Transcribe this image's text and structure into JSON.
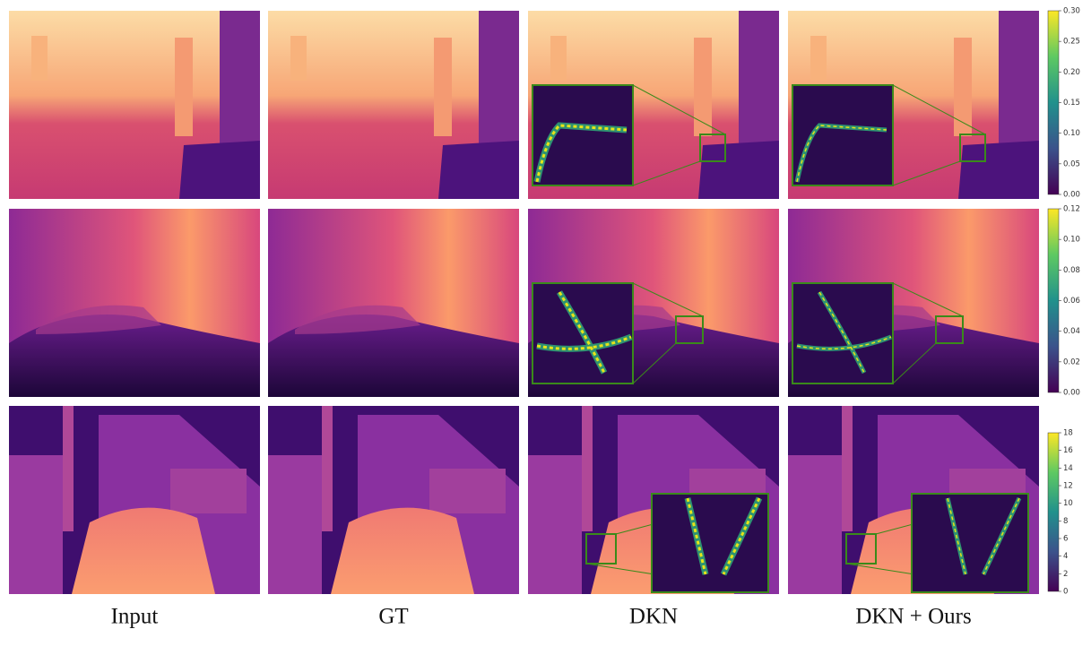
{
  "columns": [
    "Input",
    "GT",
    "DKN",
    "DKN + Ours"
  ],
  "colorbars": [
    {
      "ticks": [
        "0.00",
        "0.05",
        "0.10",
        "0.15",
        "0.20",
        "0.25",
        "0.30"
      ]
    },
    {
      "ticks": [
        "0.00",
        "0.02",
        "0.04",
        "0.06",
        "0.08",
        "0.10",
        "0.12"
      ]
    },
    {
      "ticks": [
        "0",
        "2",
        "4",
        "6",
        "8",
        "10",
        "12",
        "14",
        "16",
        "18"
      ]
    }
  ]
}
